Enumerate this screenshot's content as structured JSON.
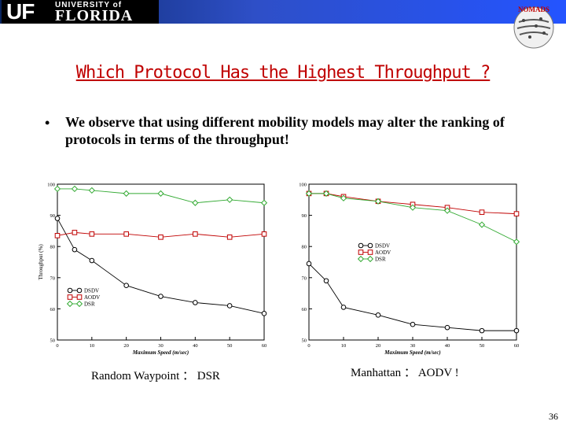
{
  "header": {
    "logo_uf": "UF",
    "logo_university": "UNIVERSITY of",
    "logo_florida": "FLORIDA",
    "nomads_text": "NOMADS"
  },
  "slide": {
    "title": "Which Protocol Has the Highest Throughput ?",
    "bullet_symbol": "•",
    "bullet": "We observe that using different mobility models may alter the ranking of protocols in terms of the throughput!",
    "caption_left": "Random Waypoint ： DSR",
    "caption_right": "Manhattan ： AODV !",
    "page_number": "36"
  },
  "colors": {
    "title": "#c00000",
    "dsdv": "#000000",
    "aodv": "#c00000",
    "dsr": "#33aa33"
  },
  "chart_data": [
    {
      "type": "line",
      "xlabel": "Maximum Speed (m/sec)",
      "ylabel": "Throughput (%)",
      "xlim": [
        0,
        60
      ],
      "ylim": [
        50,
        100
      ],
      "xticks": [
        0,
        10,
        20,
        30,
        40,
        50,
        60
      ],
      "yticks": [
        50,
        60,
        70,
        80,
        90,
        100
      ],
      "legend": "bottom-left",
      "series": [
        {
          "name": "DSDV",
          "marker": "circle",
          "x": [
            0,
            5,
            10,
            20,
            30,
            40,
            50,
            60
          ],
          "y": [
            89,
            79,
            75.5,
            67.5,
            64,
            62,
            61,
            58.5
          ]
        },
        {
          "name": "AODV",
          "marker": "square",
          "x": [
            0,
            5,
            10,
            20,
            30,
            40,
            50,
            60
          ],
          "y": [
            83.5,
            84.5,
            84,
            84,
            83,
            84,
            83,
            84
          ]
        },
        {
          "name": "DSR",
          "marker": "diamond",
          "x": [
            0,
            5,
            10,
            20,
            30,
            40,
            50,
            60
          ],
          "y": [
            98.5,
            98.5,
            98,
            97,
            97,
            94,
            95,
            94
          ]
        }
      ]
    },
    {
      "type": "line",
      "xlabel": "Maximum Speed (m/sec)",
      "ylabel": "",
      "xlim": [
        0,
        60
      ],
      "ylim": [
        50,
        100
      ],
      "xticks": [
        0,
        10,
        20,
        30,
        40,
        50,
        60
      ],
      "yticks": [
        50,
        60,
        70,
        80,
        90,
        100
      ],
      "legend": "center-right",
      "series": [
        {
          "name": "DSDV",
          "marker": "circle",
          "x": [
            0,
            5,
            10,
            20,
            30,
            40,
            50,
            60
          ],
          "y": [
            74.5,
            69,
            60.5,
            58,
            55,
            54,
            53,
            53
          ]
        },
        {
          "name": "AODV",
          "marker": "square",
          "x": [
            0,
            5,
            10,
            20,
            30,
            40,
            50,
            60
          ],
          "y": [
            97,
            97,
            96,
            94.5,
            93.5,
            92.5,
            91,
            90.5
          ]
        },
        {
          "name": "DSR",
          "marker": "diamond",
          "x": [
            0,
            5,
            10,
            20,
            30,
            40,
            50,
            60
          ],
          "y": [
            97,
            97,
            95.5,
            94.5,
            92.5,
            91.5,
            87,
            81.5
          ]
        }
      ]
    }
  ]
}
